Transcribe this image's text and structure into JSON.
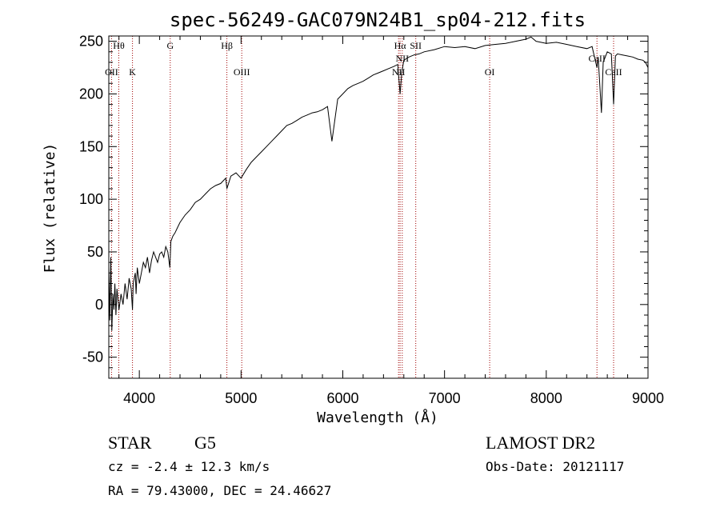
{
  "chart_data": {
    "type": "line",
    "title": "spec-56249-GAC079N24B1_sp04-212.fits",
    "xlabel": "Wavelength (Å)",
    "ylabel": "Flux (relative)",
    "xlim": [
      3700,
      9000
    ],
    "ylim": [
      -70,
      255
    ],
    "xticks": [
      4000,
      5000,
      6000,
      7000,
      8000,
      9000
    ],
    "yticks": [
      -50,
      0,
      50,
      100,
      150,
      200,
      250
    ],
    "grid": false,
    "series": [
      {
        "x": [
          3700,
          3710,
          3720,
          3730,
          3740,
          3750,
          3760,
          3770,
          3780,
          3790,
          3800,
          3820,
          3840,
          3860,
          3880,
          3900,
          3920,
          3933,
          3940,
          3960,
          3968,
          3980,
          4000,
          4020,
          4040,
          4060,
          4080,
          4100,
          4120,
          4140,
          4160,
          4180,
          4200,
          4220,
          4240,
          4260,
          4280,
          4300,
          4310,
          4330,
          4350,
          4370,
          4400,
          4450,
          4500,
          4550,
          4600,
          4650,
          4700,
          4750,
          4800,
          4850,
          4861,
          4900,
          4950,
          5000,
          5050,
          5100,
          5150,
          5200,
          5250,
          5300,
          5350,
          5400,
          5450,
          5500,
          5550,
          5600,
          5650,
          5700,
          5750,
          5800,
          5850,
          5893,
          5950,
          6000,
          6050,
          6100,
          6150,
          6200,
          6250,
          6300,
          6350,
          6400,
          6450,
          6500,
          6540,
          6563,
          6580,
          6600,
          6650,
          6700,
          6750,
          6800,
          6900,
          7000,
          7100,
          7200,
          7300,
          7400,
          7500,
          7600,
          7700,
          7800,
          7850,
          7900,
          8000,
          8100,
          8200,
          8300,
          8400,
          8450,
          8498,
          8510,
          8542,
          8560,
          8600,
          8640,
          8662,
          8680,
          8700,
          8750,
          8800,
          8850,
          8900,
          8950,
          8975,
          9000
        ],
        "values": [
          35,
          -15,
          45,
          -25,
          10,
          -5,
          20,
          -10,
          15,
          5,
          -5,
          10,
          0,
          20,
          5,
          25,
          15,
          -5,
          20,
          30,
          10,
          35,
          20,
          30,
          40,
          35,
          45,
          30,
          42,
          50,
          45,
          40,
          48,
          50,
          45,
          55,
          50,
          35,
          60,
          65,
          68,
          72,
          78,
          85,
          90,
          97,
          100,
          105,
          110,
          113,
          115,
          120,
          110,
          122,
          125,
          120,
          128,
          135,
          140,
          145,
          150,
          155,
          160,
          165,
          170,
          172,
          175,
          178,
          180,
          182,
          183,
          185,
          188,
          155,
          195,
          200,
          205,
          208,
          210,
          212,
          215,
          218,
          220,
          222,
          224,
          226,
          228,
          200,
          220,
          232,
          235,
          237,
          238,
          240,
          242,
          245,
          244,
          245,
          243,
          246,
          247,
          248,
          250,
          252,
          254,
          250,
          248,
          249,
          247,
          245,
          243,
          245,
          225,
          235,
          182,
          230,
          240,
          238,
          190,
          236,
          238,
          237,
          236,
          235,
          233,
          232,
          230,
          225
        ]
      }
    ],
    "line_markers": [
      {
        "label": "Hθ",
        "wavelength": 3798,
        "row": 1
      },
      {
        "label": "OII",
        "wavelength": 3727,
        "row": 2
      },
      {
        "label": "K",
        "wavelength": 3933,
        "row": 2
      },
      {
        "label": "G",
        "wavelength": 4304,
        "row": 1
      },
      {
        "label": "Hβ",
        "wavelength": 4861,
        "row": 1
      },
      {
        "label": "OIII",
        "wavelength": 5007,
        "row": 2
      },
      {
        "label": "Hα",
        "wavelength": 6563,
        "row": 1
      },
      {
        "label": "SII",
        "wavelength": 6717,
        "row": 1
      },
      {
        "label": "NII",
        "wavelength": 6548,
        "row": 2
      },
      {
        "label": "NII",
        "wavelength": 6584,
        "row": 3
      },
      {
        "label": "OI",
        "wavelength": 7444,
        "row": 2
      },
      {
        "label": "CaII",
        "wavelength": 8498,
        "row": 3
      },
      {
        "label": "CaII",
        "wavelength": 8662,
        "row": 2
      }
    ],
    "marker_color": "#a00000"
  },
  "info": {
    "class_text": "STAR",
    "subclass_text": "G5",
    "survey_text": "LAMOST DR2",
    "cz_text": "cz = -2.4 ± 12.3 km/s",
    "obsdate_text": "Obs-Date: 20121117",
    "radec_text": "RA =  79.43000, DEC =  24.46627"
  }
}
